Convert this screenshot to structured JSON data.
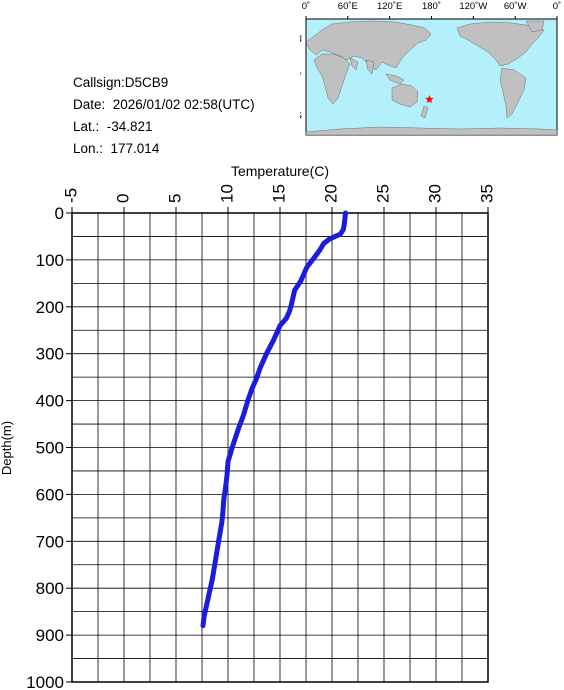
{
  "info": {
    "callsign": "Callsign:D5CB9",
    "date": "Date:  2026/01/02 02:58(UTC)",
    "lat": "Lat.:  -34.821",
    "lon": "Lon.:  177.014"
  },
  "map": {
    "top_labels": [
      "0˚",
      "60˚E",
      "120˚E",
      "180˚",
      "120˚W",
      "60˚W",
      "0˚"
    ],
    "left_labels": [
      "60˚N",
      "0˚",
      "60˚S"
    ],
    "ocean_color": "#b3f0fb",
    "land_color": "#c0c0c0",
    "marker_icon": "star-icon",
    "marker_color": "#ff0000",
    "marker_lat": -34.821,
    "marker_lon": 177.014
  },
  "chart_data": {
    "type": "line",
    "title": "",
    "xlabel": "Temperature(C)",
    "ylabel": "Depth(m)",
    "xlim": [
      -5,
      35
    ],
    "ylim": [
      1000,
      0
    ],
    "x_ticks": [
      "-5",
      "0",
      "5",
      "10",
      "15",
      "20",
      "25",
      "30",
      "35"
    ],
    "y_ticks": [
      "0",
      "100",
      "200",
      "300",
      "400",
      "500",
      "600",
      "700",
      "800",
      "900",
      "1000"
    ],
    "grid": true,
    "line_color": "#1c1cdc",
    "series": [
      {
        "x": [
          21.3,
          21.2,
          21.1,
          20.8,
          19.8,
          19.2,
          18.8,
          18.3,
          17.6,
          17.0,
          16.4,
          16.1,
          15.9,
          15.6,
          15.0,
          14.4,
          13.7,
          13.1,
          12.7,
          12.3,
          11.9,
          11.5,
          11.0,
          10.7,
          10.4,
          10.0,
          9.9,
          9.8,
          9.6,
          9.5,
          9.4,
          9.1,
          8.8,
          8.5,
          8.2,
          7.9,
          7.7,
          7.6
        ],
        "y": [
          0,
          20,
          35,
          45,
          55,
          65,
          80,
          95,
          115,
          145,
          165,
          195,
          210,
          225,
          240,
          270,
          300,
          330,
          355,
          375,
          400,
          430,
          460,
          480,
          500,
          530,
          560,
          580,
          610,
          640,
          660,
          700,
          740,
          780,
          810,
          840,
          860,
          880
        ]
      }
    ]
  }
}
